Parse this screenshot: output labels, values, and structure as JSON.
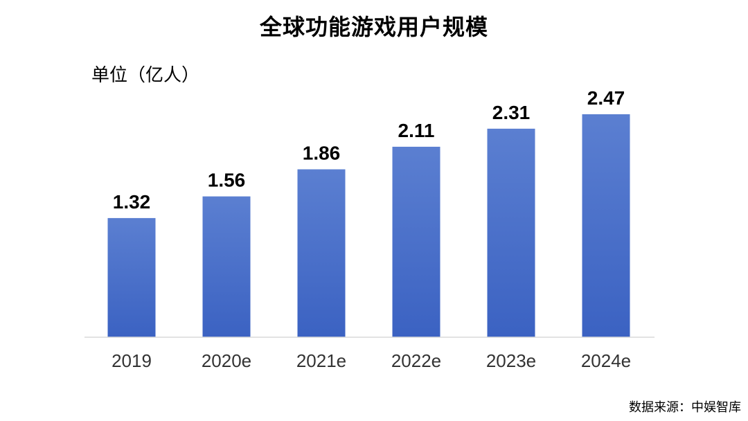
{
  "chart_data": {
    "type": "bar",
    "title": "全球功能游戏用户规模",
    "unit_label": "单位（亿人）",
    "categories": [
      "2019",
      "2020e",
      "2021e",
      "2022e",
      "2023e",
      "2024e"
    ],
    "values": [
      1.32,
      1.56,
      1.86,
      2.11,
      2.31,
      2.47
    ],
    "value_labels": [
      "1.32",
      "1.56",
      "1.86",
      "2.11",
      "2.31",
      "2.47"
    ],
    "ylim": [
      0,
      2.47
    ],
    "xlabel": "",
    "ylabel": "",
    "grid": false,
    "legend": "none",
    "bar_color_top": "#5b7fd1",
    "bar_color_bottom": "#3b62c2",
    "axis_color": "#d9d9d9"
  },
  "source": "数据来源：中娱智库"
}
